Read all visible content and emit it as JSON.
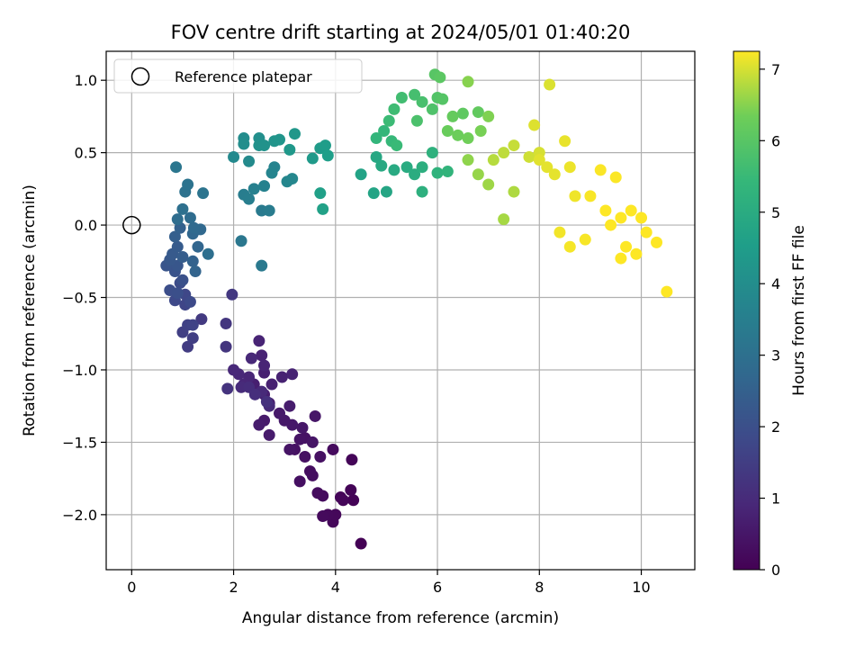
{
  "chart_data": {
    "type": "scatter",
    "title": "FOV centre drift starting at 2024/05/01 01:40:20",
    "xlabel": "Angular distance from reference (arcmin)",
    "ylabel": "Rotation from reference (arcmin)",
    "xlim": [
      -0.5,
      11.05
    ],
    "ylim": [
      -2.38,
      1.2
    ],
    "xticks": [
      0,
      2,
      4,
      6,
      8,
      10
    ],
    "yticks": [
      1.0,
      0.5,
      0.0,
      -0.5,
      -1.0,
      -1.5,
      -2.0
    ],
    "xtick_labels": [
      "0",
      "2",
      "4",
      "6",
      "8",
      "10"
    ],
    "ytick_labels": [
      "1.0",
      "0.5",
      "0.0",
      "−0.5",
      "−1.0",
      "−1.5",
      "−2.0"
    ],
    "grid": true,
    "legend": {
      "position": "top-left",
      "entries": [
        {
          "label": "Reference platepar",
          "marker": "open-circle"
        }
      ]
    },
    "reference_point": {
      "x": 0,
      "y": 0
    },
    "colorbar": {
      "label": "Hours from first FF file",
      "colormap": "viridis",
      "range": [
        0,
        7.25
      ],
      "ticks": [
        0,
        1,
        2,
        3,
        4,
        5,
        6,
        7
      ],
      "tick_labels": [
        "0",
        "1",
        "2",
        "3",
        "4",
        "5",
        "6",
        "7"
      ]
    },
    "points": [
      [
        4.5,
        -2.2,
        0.02
      ],
      [
        4.35,
        -1.9,
        0.05
      ],
      [
        4.3,
        -1.83,
        0.07
      ],
      [
        4.32,
        -1.62,
        0.09
      ],
      [
        4.1,
        -1.88,
        0.1
      ],
      [
        4.15,
        -1.9,
        0.12
      ],
      [
        3.95,
        -2.05,
        0.14
      ],
      [
        4.0,
        -2.0,
        0.16
      ],
      [
        3.85,
        -2.0,
        0.18
      ],
      [
        3.75,
        -2.01,
        0.2
      ],
      [
        3.95,
        -1.55,
        0.22
      ],
      [
        3.75,
        -1.87,
        0.24
      ],
      [
        3.65,
        -1.85,
        0.26
      ],
      [
        3.5,
        -1.7,
        0.28
      ],
      [
        3.55,
        -1.73,
        0.3
      ],
      [
        3.3,
        -1.77,
        0.32
      ],
      [
        3.7,
        -1.6,
        0.34
      ],
      [
        3.4,
        -1.6,
        0.36
      ],
      [
        3.2,
        -1.55,
        0.38
      ],
      [
        3.4,
        -1.47,
        0.4
      ],
      [
        3.3,
        -1.48,
        0.42
      ],
      [
        3.1,
        -1.55,
        0.44
      ],
      [
        3.55,
        -1.5,
        0.46
      ],
      [
        3.6,
        -1.32,
        0.48
      ],
      [
        3.35,
        -1.4,
        0.5
      ],
      [
        3.15,
        -1.38,
        0.52
      ],
      [
        3.0,
        -1.35,
        0.54
      ],
      [
        2.9,
        -1.3,
        0.56
      ],
      [
        2.6,
        -1.35,
        0.58
      ],
      [
        2.7,
        -1.45,
        0.6
      ],
      [
        2.5,
        -1.38,
        0.62
      ],
      [
        3.1,
        -1.25,
        0.64
      ],
      [
        2.7,
        -1.23,
        0.66
      ],
      [
        2.6,
        -1.17,
        0.68
      ],
      [
        2.4,
        -1.1,
        0.7
      ],
      [
        2.6,
        -1.02,
        0.72
      ],
      [
        2.75,
        -1.1,
        0.74
      ],
      [
        2.95,
        -1.05,
        0.76
      ],
      [
        3.15,
        -1.03,
        0.78
      ],
      [
        2.55,
        -0.9,
        0.8
      ],
      [
        2.5,
        -0.8,
        0.82
      ],
      [
        2.6,
        -0.97,
        0.84
      ],
      [
        2.3,
        -1.05,
        0.86
      ],
      [
        2.2,
        -1.1,
        0.88
      ],
      [
        2.1,
        -1.03,
        0.9
      ],
      [
        2.35,
        -0.92,
        0.92
      ],
      [
        2.0,
        -1.0,
        0.94
      ],
      [
        2.55,
        -1.15,
        0.96
      ],
      [
        2.7,
        -1.25,
        0.98
      ],
      [
        2.15,
        -1.12,
        1.0
      ],
      [
        2.3,
        -1.12,
        1.05
      ],
      [
        2.42,
        -1.17,
        1.1
      ],
      [
        2.65,
        -1.22,
        1.15
      ],
      [
        1.88,
        -1.13,
        1.2
      ],
      [
        1.85,
        -0.84,
        1.25
      ],
      [
        1.85,
        -0.68,
        1.3
      ],
      [
        1.97,
        -0.48,
        1.35
      ],
      [
        1.37,
        -0.65,
        1.4
      ],
      [
        1.1,
        -0.84,
        1.45
      ],
      [
        1.2,
        -0.78,
        1.5
      ],
      [
        1.0,
        -0.74,
        1.55
      ],
      [
        1.1,
        -0.69,
        1.6
      ],
      [
        1.2,
        -0.69,
        1.65
      ],
      [
        1.05,
        -0.55,
        1.7
      ],
      [
        1.05,
        -0.48,
        1.75
      ],
      [
        0.85,
        -0.52,
        1.8
      ],
      [
        1.15,
        -0.53,
        1.85
      ],
      [
        0.95,
        -0.4,
        1.9
      ],
      [
        0.75,
        -0.45,
        1.95
      ],
      [
        0.9,
        -0.47,
        2.0
      ],
      [
        1.0,
        -0.38,
        2.05
      ],
      [
        0.85,
        -0.32,
        2.1
      ],
      [
        0.68,
        -0.28,
        2.15
      ],
      [
        0.9,
        -0.28,
        2.2
      ],
      [
        0.75,
        -0.24,
        2.25
      ],
      [
        0.8,
        -0.2,
        2.3
      ],
      [
        0.9,
        -0.15,
        2.35
      ],
      [
        1.0,
        -0.22,
        2.4
      ],
      [
        0.85,
        -0.08,
        2.45
      ],
      [
        0.95,
        -0.02,
        2.5
      ],
      [
        1.2,
        -0.25,
        2.55
      ],
      [
        1.25,
        -0.32,
        2.6
      ],
      [
        1.3,
        -0.15,
        2.65
      ],
      [
        1.2,
        -0.06,
        2.7
      ],
      [
        1.35,
        -0.03,
        2.75
      ],
      [
        1.22,
        -0.02,
        2.8
      ],
      [
        1.15,
        0.05,
        2.85
      ],
      [
        0.9,
        0.04,
        2.9
      ],
      [
        1.5,
        -0.2,
        2.95
      ],
      [
        1.0,
        0.11,
        3.0
      ],
      [
        1.05,
        0.23,
        3.05
      ],
      [
        1.1,
        0.28,
        3.1
      ],
      [
        1.4,
        0.22,
        3.15
      ],
      [
        0.87,
        0.4,
        3.2
      ],
      [
        2.15,
        -0.11,
        3.25
      ],
      [
        2.55,
        -0.28,
        3.3
      ],
      [
        2.55,
        0.1,
        3.35
      ],
      [
        2.7,
        0.1,
        3.4
      ],
      [
        2.2,
        0.21,
        3.45
      ],
      [
        2.3,
        0.18,
        3.5
      ],
      [
        2.4,
        0.25,
        3.55
      ],
      [
        2.6,
        0.27,
        3.6
      ],
      [
        2.8,
        0.4,
        3.65
      ],
      [
        2.75,
        0.36,
        3.7
      ],
      [
        3.05,
        0.3,
        3.75
      ],
      [
        3.15,
        0.32,
        3.8
      ],
      [
        2.0,
        0.47,
        3.85
      ],
      [
        2.3,
        0.44,
        3.9
      ],
      [
        2.2,
        0.6,
        3.95
      ],
      [
        2.2,
        0.56,
        4.0
      ],
      [
        2.5,
        0.6,
        4.05
      ],
      [
        2.5,
        0.55,
        4.1
      ],
      [
        2.6,
        0.55,
        4.15
      ],
      [
        2.8,
        0.58,
        4.2
      ],
      [
        2.9,
        0.59,
        4.25
      ],
      [
        3.2,
        0.63,
        4.3
      ],
      [
        3.1,
        0.52,
        4.35
      ],
      [
        3.55,
        0.46,
        4.4
      ],
      [
        3.7,
        0.53,
        4.45
      ],
      [
        3.8,
        0.55,
        4.5
      ],
      [
        3.85,
        0.48,
        4.55
      ],
      [
        3.7,
        0.22,
        4.6
      ],
      [
        3.75,
        0.11,
        4.65
      ],
      [
        4.5,
        0.35,
        4.7
      ],
      [
        4.75,
        0.22,
        4.75
      ],
      [
        5.0,
        0.23,
        4.8
      ],
      [
        4.8,
        0.47,
        4.85
      ],
      [
        4.9,
        0.41,
        4.9
      ],
      [
        5.15,
        0.38,
        4.95
      ],
      [
        5.4,
        0.4,
        5.0
      ],
      [
        5.55,
        0.35,
        5.05
      ],
      [
        5.7,
        0.4,
        5.1
      ],
      [
        5.7,
        0.23,
        5.15
      ],
      [
        5.9,
        0.5,
        5.2
      ],
      [
        6.0,
        0.36,
        5.25
      ],
      [
        6.2,
        0.37,
        5.3
      ],
      [
        4.8,
        0.6,
        5.35
      ],
      [
        4.95,
        0.65,
        5.4
      ],
      [
        5.1,
        0.58,
        5.45
      ],
      [
        5.2,
        0.55,
        5.5
      ],
      [
        5.05,
        0.72,
        5.55
      ],
      [
        5.15,
        0.8,
        5.6
      ],
      [
        5.3,
        0.88,
        5.65
      ],
      [
        5.55,
        0.9,
        5.7
      ],
      [
        5.7,
        0.85,
        5.75
      ],
      [
        5.6,
        0.72,
        5.8
      ],
      [
        5.9,
        0.8,
        5.85
      ],
      [
        6.0,
        0.88,
        5.9
      ],
      [
        6.1,
        0.87,
        5.95
      ],
      [
        5.95,
        1.04,
        6.0
      ],
      [
        6.05,
        1.02,
        6.05
      ],
      [
        6.5,
        0.77,
        6.1
      ],
      [
        6.8,
        0.78,
        6.15
      ],
      [
        6.3,
        0.75,
        6.2
      ],
      [
        6.2,
        0.65,
        6.25
      ],
      [
        6.4,
        0.62,
        6.3
      ],
      [
        6.6,
        0.6,
        6.35
      ],
      [
        6.85,
        0.65,
        6.4
      ],
      [
        7.0,
        0.75,
        6.45
      ],
      [
        6.6,
        0.99,
        6.5
      ],
      [
        6.6,
        0.45,
        6.55
      ],
      [
        6.8,
        0.35,
        6.6
      ],
      [
        7.0,
        0.28,
        6.65
      ],
      [
        7.3,
        0.04,
        6.7
      ],
      [
        7.5,
        0.23,
        6.75
      ],
      [
        7.1,
        0.45,
        6.8
      ],
      [
        7.3,
        0.5,
        6.85
      ],
      [
        7.5,
        0.55,
        6.9
      ],
      [
        7.8,
        0.47,
        6.95
      ],
      [
        8.0,
        0.5,
        7.0
      ],
      [
        8.2,
        0.97,
        7.03
      ],
      [
        7.9,
        0.69,
        7.05
      ],
      [
        8.0,
        0.45,
        7.07
      ],
      [
        8.15,
        0.4,
        7.09
      ],
      [
        8.3,
        0.35,
        7.1
      ],
      [
        8.5,
        0.58,
        7.12
      ],
      [
        8.6,
        0.4,
        7.14
      ],
      [
        8.7,
        0.2,
        7.16
      ],
      [
        8.4,
        -0.05,
        7.18
      ],
      [
        8.6,
        -0.15,
        7.2
      ],
      [
        8.9,
        -0.1,
        7.21
      ],
      [
        9.0,
        0.2,
        7.22
      ],
      [
        9.2,
        0.38,
        7.23
      ],
      [
        9.5,
        0.33,
        7.24
      ],
      [
        9.3,
        0.1,
        7.25
      ],
      [
        9.4,
        0.0,
        7.25
      ],
      [
        9.6,
        0.05,
        7.25
      ],
      [
        9.7,
        -0.15,
        7.25
      ],
      [
        9.8,
        0.1,
        7.25
      ],
      [
        10.0,
        0.05,
        7.25
      ],
      [
        10.1,
        -0.05,
        7.25
      ],
      [
        10.3,
        -0.12,
        7.25
      ],
      [
        10.5,
        -0.46,
        7.25
      ],
      [
        9.9,
        -0.2,
        7.25
      ],
      [
        9.6,
        -0.23,
        7.25
      ]
    ]
  }
}
